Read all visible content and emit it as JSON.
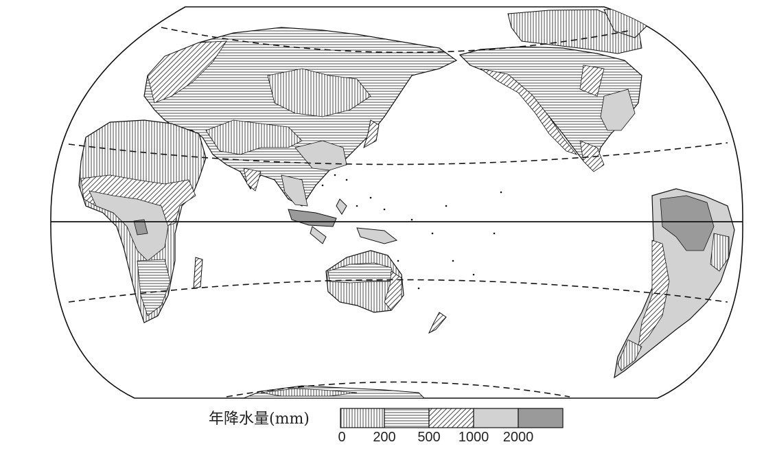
{
  "legend": {
    "title": "年降水量(mm)",
    "ticks": [
      "0",
      "200",
      "500",
      "1000",
      "2000"
    ],
    "classes": [
      {
        "range": "0-200",
        "pattern": "vertical-lines"
      },
      {
        "range": "200-500",
        "pattern": "horizontal-lines"
      },
      {
        "range": "500-1000",
        "pattern": "diagonal-lines"
      },
      {
        "range": "1000-2000",
        "fill": "#d2d2d2"
      },
      {
        "range": ">2000",
        "fill": "#9a9a9a"
      }
    ]
  },
  "map": {
    "projection": "world-pacific-centered",
    "lines": [
      "equator",
      "tropic-of-cancer",
      "tropic-of-capricorn",
      "arctic-circle",
      "antarctic-circle"
    ]
  }
}
